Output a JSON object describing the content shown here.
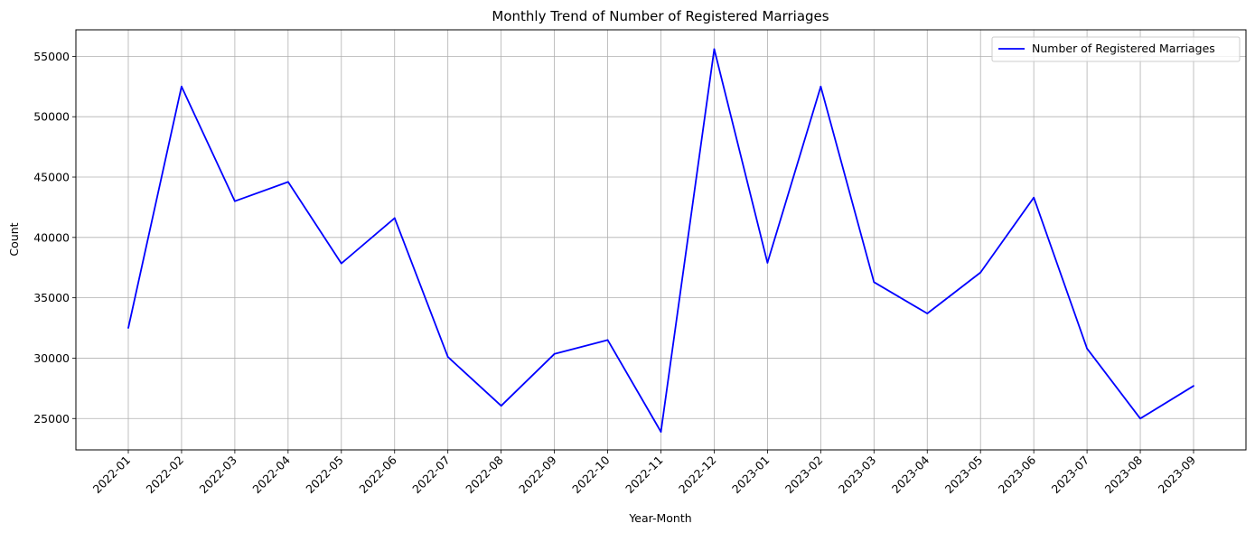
{
  "chart_data": {
    "type": "line",
    "title": "Monthly Trend of Number of Registered Marriages",
    "xlabel": "Year-Month",
    "ylabel": "Count",
    "categories": [
      "2022-01",
      "2022-02",
      "2022-03",
      "2022-04",
      "2022-05",
      "2022-06",
      "2022-07",
      "2022-08",
      "2022-09",
      "2022-10",
      "2022-11",
      "2022-12",
      "2023-01",
      "2023-02",
      "2023-03",
      "2023-04",
      "2023-05",
      "2023-06",
      "2023-07",
      "2023-08",
      "2023-09"
    ],
    "series": [
      {
        "name": "Number of Registered Marriages",
        "color": "#0000ff",
        "values": [
          32500,
          52500,
          43000,
          44600,
          37850,
          41600,
          30100,
          26050,
          30350,
          31500,
          23900,
          55600,
          37900,
          52500,
          36300,
          33700,
          37100,
          43300,
          30800,
          25000,
          27700
        ]
      }
    ],
    "ylim": [
      22400,
      57200
    ],
    "yticks": [
      "25000",
      "30000",
      "35000",
      "40000",
      "45000",
      "50000",
      "55000"
    ],
    "grid": true,
    "legend_position": "top-right"
  }
}
